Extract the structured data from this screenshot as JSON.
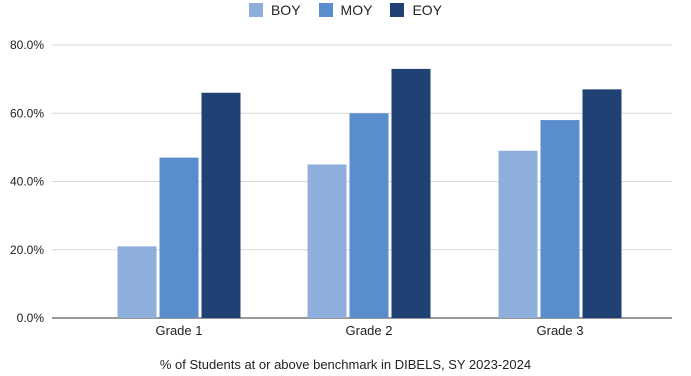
{
  "chart_data": {
    "type": "bar",
    "categories": [
      "Grade 1",
      "Grade 2",
      "Grade 3"
    ],
    "series": [
      {
        "name": "BOY",
        "color": "#8eafdc",
        "values": [
          21,
          45,
          49
        ]
      },
      {
        "name": "MOY",
        "color": "#5a8dcc",
        "values": [
          47,
          60,
          58
        ]
      },
      {
        "name": "EOY",
        "color": "#1f4174",
        "values": [
          66,
          73,
          67
        ]
      }
    ],
    "yticks": [
      "0.0%",
      "20.0%",
      "40.0%",
      "60.0%",
      "80.0%"
    ],
    "ylim": [
      0,
      80
    ],
    "xlabel": "% of Students at or above benchmark in DIBELS, SY 2023-2024",
    "legend_position": "top",
    "grid": true
  }
}
